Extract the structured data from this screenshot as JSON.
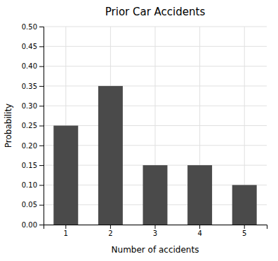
{
  "chart_data": {
    "type": "bar",
    "title": "Prior Car Accidents",
    "xlabel": "Number of accidents",
    "ylabel": "Probability",
    "categories": [
      1,
      2,
      3,
      4,
      5
    ],
    "values": [
      0.25,
      0.35,
      0.15,
      0.15,
      0.1
    ],
    "color": "#4a4a4a",
    "ylim": [
      0.0,
      0.5
    ],
    "yticks": [
      {
        "value": 0.0,
        "label": "0.00"
      },
      {
        "value": 0.05,
        "label": "0.05"
      },
      {
        "value": 0.1,
        "label": "0.10"
      },
      {
        "value": 0.15,
        "label": "0.15"
      },
      {
        "value": 0.2,
        "label": "0.20"
      },
      {
        "value": 0.25,
        "label": "0.25"
      },
      {
        "value": 0.3,
        "label": "0.30"
      },
      {
        "value": 0.35,
        "label": "0.35"
      },
      {
        "value": 0.4,
        "label": "0.40"
      },
      {
        "value": 0.45,
        "label": "0.45"
      },
      {
        "value": 0.5,
        "label": "0.50"
      }
    ],
    "grid": true
  }
}
